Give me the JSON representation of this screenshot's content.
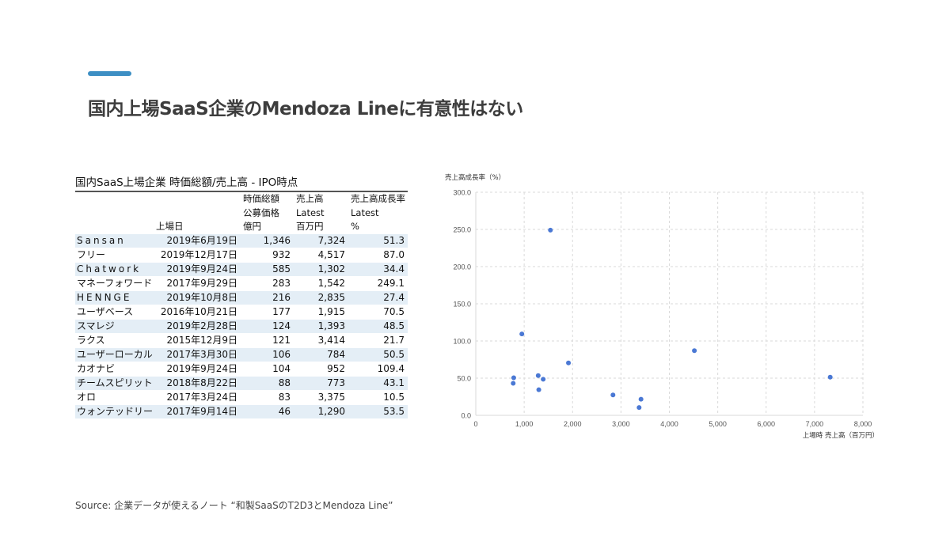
{
  "page": {
    "title": "国内上場SaaS企業のMendoza Lineに有意性はない",
    "source": "Source: 企業データが使えるノート “和製SaaSのT2D3とMendoza Line”",
    "accent_color": "#3d8fc4"
  },
  "table": {
    "title": "国内SaaS上場企業 時価総額/売上高 - IPO時点",
    "headers": {
      "date": [
        "",
        "",
        "上場日"
      ],
      "cap": [
        "時価総額",
        "公募価格",
        "億円"
      ],
      "rev": [
        "売上高",
        "Latest",
        "百万円"
      ],
      "growth": [
        "売上高成長率",
        "Latest",
        "%"
      ]
    },
    "rows": [
      {
        "name": "Sansan",
        "date": "2019年6月19日",
        "cap": "1,346",
        "rev": "7,324",
        "growth": "51.3"
      },
      {
        "name": "フリー",
        "date": "2019年12月17日",
        "cap": "932",
        "rev": "4,517",
        "growth": "87.0"
      },
      {
        "name": "Chatwork",
        "date": "2019年9月24日",
        "cap": "585",
        "rev": "1,302",
        "growth": "34.4"
      },
      {
        "name": "マネーフォワード",
        "date": "2017年9月29日",
        "cap": "283",
        "rev": "1,542",
        "growth": "249.1"
      },
      {
        "name": "HENNGE",
        "date": "2019年10月8日",
        "cap": "216",
        "rev": "2,835",
        "growth": "27.4"
      },
      {
        "name": "ユーザベース",
        "date": "2016年10月21日",
        "cap": "177",
        "rev": "1,915",
        "growth": "70.5"
      },
      {
        "name": "スマレジ",
        "date": "2019年2月28日",
        "cap": "124",
        "rev": "1,393",
        "growth": "48.5"
      },
      {
        "name": "ラクス",
        "date": "2015年12月9日",
        "cap": "121",
        "rev": "3,414",
        "growth": "21.7"
      },
      {
        "name": "ユーザーローカル",
        "date": "2017年3月30日",
        "cap": "106",
        "rev": "784",
        "growth": "50.5"
      },
      {
        "name": "カオナビ",
        "date": "2019年9月24日",
        "cap": "104",
        "rev": "952",
        "growth": "109.4"
      },
      {
        "name": "チームスピリット",
        "date": "2018年8月22日",
        "cap": "88",
        "rev": "773",
        "growth": "43.1"
      },
      {
        "name": "オロ",
        "date": "2017年3月24日",
        "cap": "83",
        "rev": "3,375",
        "growth": "10.5"
      },
      {
        "name": "ウォンテッドリー",
        "date": "2017年9月14日",
        "cap": "46",
        "rev": "1,290",
        "growth": "53.5"
      }
    ],
    "row_color": "#e4eef6"
  },
  "chart_data": {
    "type": "scatter",
    "title": "",
    "ylabel": "売上高成長率（%）",
    "xlabel": "上場時 売上高（百万円）",
    "xlim": [
      0,
      8000
    ],
    "ylim": [
      0,
      300
    ],
    "x_ticks": [
      "0",
      "1,000",
      "2,000",
      "3,000",
      "4,000",
      "5,000",
      "6,000",
      "7,000",
      "8,000"
    ],
    "x_tick_values": [
      0,
      1000,
      2000,
      3000,
      4000,
      5000,
      6000,
      7000,
      8000
    ],
    "y_ticks": [
      "0.0",
      "50.0",
      "100.0",
      "150.0",
      "200.0",
      "250.0",
      "300.0"
    ],
    "y_tick_values": [
      0,
      50,
      100,
      150,
      200,
      250,
      300
    ],
    "grid": "dashed",
    "point_color": "#4a78d4",
    "points": [
      {
        "x": 7324,
        "y": 51.3
      },
      {
        "x": 4517,
        "y": 87.0
      },
      {
        "x": 1302,
        "y": 34.4
      },
      {
        "x": 1542,
        "y": 249.1
      },
      {
        "x": 2835,
        "y": 27.4
      },
      {
        "x": 1915,
        "y": 70.5
      },
      {
        "x": 1393,
        "y": 48.5
      },
      {
        "x": 3414,
        "y": 21.7
      },
      {
        "x": 784,
        "y": 50.5
      },
      {
        "x": 952,
        "y": 109.4
      },
      {
        "x": 773,
        "y": 43.1
      },
      {
        "x": 3375,
        "y": 10.5
      },
      {
        "x": 1290,
        "y": 53.5
      }
    ]
  }
}
